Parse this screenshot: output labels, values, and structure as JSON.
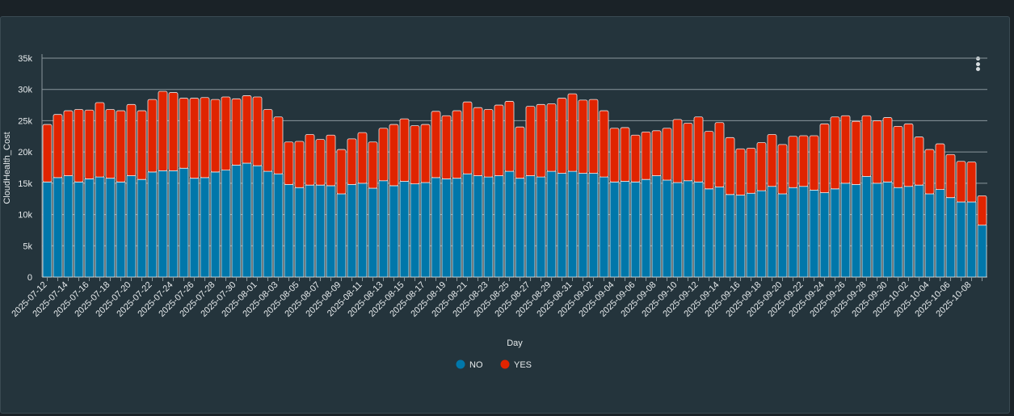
{
  "chart_data": {
    "type": "bar",
    "stacked": true,
    "title": "",
    "xlabel": "Day",
    "ylabel": "CloudHealth_Cost",
    "ylim": [
      0,
      35000
    ],
    "yticks": [
      0,
      5000,
      10000,
      15000,
      20000,
      25000,
      30000,
      35000
    ],
    "ytick_labels": [
      "0",
      "5k",
      "10k",
      "15k",
      "20k",
      "25k",
      "30k",
      "35k"
    ],
    "grid": true,
    "legend_position": "bottom",
    "categories": [
      "2025-07-12",
      "2025-07-13",
      "2025-07-14",
      "2025-07-15",
      "2025-07-16",
      "2025-07-17",
      "2025-07-18",
      "2025-07-19",
      "2025-07-20",
      "2025-07-21",
      "2025-07-22",
      "2025-07-23",
      "2025-07-24",
      "2025-07-25",
      "2025-07-26",
      "2025-07-27",
      "2025-07-28",
      "2025-07-29",
      "2025-07-30",
      "2025-07-31",
      "2025-08-01",
      "2025-08-02",
      "2025-08-03",
      "2025-08-04",
      "2025-08-05",
      "2025-08-06",
      "2025-08-07",
      "2025-08-08",
      "2025-08-09",
      "2025-08-10",
      "2025-08-11",
      "2025-08-12",
      "2025-08-13",
      "2025-08-14",
      "2025-08-15",
      "2025-08-16",
      "2025-08-17",
      "2025-08-18",
      "2025-08-19",
      "2025-08-20",
      "2025-08-21",
      "2025-08-22",
      "2025-08-23",
      "2025-08-24",
      "2025-08-25",
      "2025-08-26",
      "2025-08-27",
      "2025-08-28",
      "2025-08-29",
      "2025-08-30",
      "2025-08-31",
      "2025-09-01",
      "2025-09-02",
      "2025-09-03",
      "2025-09-04",
      "2025-09-05",
      "2025-09-06",
      "2025-09-07",
      "2025-09-08",
      "2025-09-09",
      "2025-09-10",
      "2025-09-11",
      "2025-09-12",
      "2025-09-13",
      "2025-09-14",
      "2025-09-15",
      "2025-09-16",
      "2025-09-17",
      "2025-09-18",
      "2025-09-19",
      "2025-09-20",
      "2025-09-21",
      "2025-09-22",
      "2025-09-23",
      "2025-09-24",
      "2025-09-25",
      "2025-09-26",
      "2025-09-27",
      "2025-09-28",
      "2025-09-29",
      "2025-09-30",
      "2025-10-01",
      "2025-10-02",
      "2025-10-03",
      "2025-10-04",
      "2025-10-05",
      "2025-10-06",
      "2025-10-07",
      "2025-10-08",
      "2025-10-09"
    ],
    "series": [
      {
        "name": "NO",
        "color": "#0077aa",
        "values": [
          15200,
          15900,
          16200,
          15200,
          15700,
          16000,
          15800,
          15200,
          16200,
          15600,
          16800,
          17000,
          17000,
          17400,
          15800,
          15900,
          16800,
          17100,
          17900,
          18200,
          17800,
          16900,
          16500,
          14800,
          14300,
          14700,
          14700,
          14600,
          13300,
          14800,
          15000,
          14200,
          15400,
          14600,
          15300,
          14900,
          15100,
          15900,
          15700,
          15800,
          16500,
          16200,
          16000,
          16200,
          16900,
          15800,
          16200,
          16000,
          16900,
          16600,
          16900,
          16600,
          16600,
          16000,
          15200,
          15300,
          15200,
          15600,
          16200,
          15500,
          15100,
          15400,
          15200,
          14100,
          14400,
          13200,
          13100,
          13400,
          13800,
          14500,
          13300,
          14300,
          14500,
          13900,
          13500,
          14100,
          15000,
          14800,
          16100,
          15000,
          15200,
          14300,
          14500,
          14700,
          13300,
          14000,
          12700,
          12000,
          12000,
          8300
        ]
      },
      {
        "name": "YES",
        "color": "#e02400",
        "values": [
          9200,
          10100,
          10400,
          11600,
          11000,
          11900,
          11000,
          11400,
          11400,
          11000,
          11600,
          12700,
          12500,
          11200,
          12800,
          12800,
          11600,
          11700,
          10600,
          10800,
          11000,
          9900,
          9100,
          6800,
          7400,
          8100,
          7300,
          8100,
          7100,
          7300,
          8100,
          7400,
          8400,
          9800,
          10000,
          9300,
          9300,
          10600,
          10100,
          10800,
          11500,
          10900,
          10800,
          11300,
          11200,
          8200,
          11100,
          11600,
          10800,
          12000,
          12400,
          11700,
          11800,
          10600,
          8600,
          8600,
          7500,
          7600,
          7200,
          8300,
          10100,
          9200,
          10400,
          9200,
          10300,
          9100,
          7400,
          7200,
          7700,
          8300,
          7900,
          8200,
          8100,
          8700,
          11000,
          11500,
          10800,
          10100,
          9700,
          10000,
          10300,
          9800,
          10000,
          7700,
          7100,
          7300,
          6900,
          6500,
          6400,
          4700
        ]
      }
    ]
  }
}
